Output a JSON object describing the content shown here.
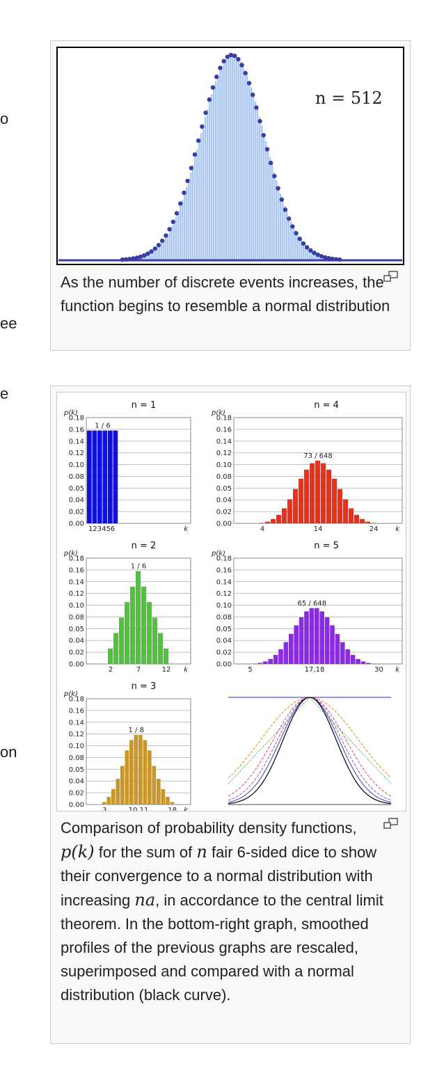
{
  "edge_fragments": [
    "o",
    "ee",
    "e",
    "on"
  ],
  "figure1": {
    "annotation": "n = 512",
    "caption": "As the number of discrete events increases, the function begins to resemble a normal distribution",
    "enlarge_icon": "magnify-clip-icon",
    "colors": {
      "bars": "#a9c8f4",
      "dots": "#3a3ea0",
      "frame": "#000000"
    }
  },
  "figure2": {
    "caption": {
      "part1": "Comparison of probability density functions, ",
      "math1": "p(k)",
      "part2": " for the sum of ",
      "math2": "n",
      "part3": " fair 6-sided dice to show their convergence to a normal distribution with increasing ",
      "math3": "na",
      "part4": ", in accordance to the central limit theorem. In the bottom-right graph, smoothed profiles of the previous graphs are rescaled, superimposed and compared with a normal distribution (black curve)."
    },
    "enlarge_icon": "magnify-clip-icon"
  },
  "chart_data": [
    {
      "type": "scatter",
      "annotation": "n = 512",
      "shape": "normal-like bell curve of dots over light-blue bars"
    },
    {
      "type": "bar",
      "title": "n = 1",
      "ylabel": "p(k)",
      "xlabel": "k",
      "y_ticks": [
        "0.18",
        "0.16",
        "0.14",
        "0.12",
        "0.10",
        "0.08",
        "0.05",
        "0.04",
        "0.02",
        "0.00"
      ],
      "x_tick_labels": [
        "123456"
      ],
      "peak_label": "1 / 6",
      "ylim": [
        0,
        0.19
      ],
      "k_start": 1,
      "color": "#1010e0",
      "values": [
        0.1667,
        0.1667,
        0.1667,
        0.1667,
        0.1667,
        0.1667
      ]
    },
    {
      "type": "bar",
      "title": "n = 4",
      "ylabel": "p(k)",
      "xlabel": "k",
      "y_ticks": [
        "0.18",
        "0.16",
        "0.14",
        "0.12",
        "0.10",
        "0.08",
        "0.05",
        "0.04",
        "0.02",
        "0.00"
      ],
      "x_tick_labels": [
        "4",
        "14",
        "24"
      ],
      "peak_label": "73 / 648",
      "ylim": [
        0,
        0.19
      ],
      "k_start": 4,
      "color": "#e8301c",
      "values": [
        0.0008,
        0.0031,
        0.0077,
        0.0154,
        0.027,
        0.0432,
        0.0617,
        0.0802,
        0.0965,
        0.108,
        0.1127,
        0.108,
        0.0965,
        0.0802,
        0.0617,
        0.0432,
        0.027,
        0.0154,
        0.0077,
        0.0031,
        0.0008
      ]
    },
    {
      "type": "bar",
      "title": "n = 2",
      "ylabel": "p(k)",
      "xlabel": "k",
      "y_ticks": [
        "0.18",
        "0.16",
        "0.14",
        "0.12",
        "0.10",
        "0.08",
        "0.05",
        "0.04",
        "0.02",
        "0.00"
      ],
      "x_tick_labels": [
        "2",
        "7",
        "12"
      ],
      "peak_label": "1 / 6",
      "ylim": [
        0,
        0.19
      ],
      "k_start": 2,
      "color": "#55c040",
      "values": [
        0.0278,
        0.0556,
        0.0833,
        0.1111,
        0.1389,
        0.1667,
        0.1389,
        0.1111,
        0.0833,
        0.0556,
        0.0278
      ]
    },
    {
      "type": "bar",
      "title": "n = 5",
      "ylabel": "p(k)",
      "xlabel": "k",
      "y_ticks": [
        "0.18",
        "0.16",
        "0.14",
        "0.12",
        "0.10",
        "0.08",
        "0.05",
        "0.04",
        "0.02",
        "0.00"
      ],
      "x_tick_labels": [
        "5",
        "17,18",
        "30"
      ],
      "peak_label": "65 / 648",
      "ylim": [
        0,
        0.19
      ],
      "k_start": 5,
      "color": "#8a2be2",
      "values": [
        0.0001,
        0.0006,
        0.0019,
        0.0045,
        0.009,
        0.0162,
        0.0264,
        0.0392,
        0.054,
        0.0694,
        0.0837,
        0.0945,
        0.1003,
        0.1003,
        0.0945,
        0.0837,
        0.0694,
        0.054,
        0.0392,
        0.0264,
        0.0162,
        0.009,
        0.0045,
        0.0019,
        0.0006,
        0.0001
      ]
    },
    {
      "type": "bar",
      "title": "n = 3",
      "ylabel": "p(k)",
      "xlabel": "k",
      "y_ticks": [
        "0.18",
        "0.16",
        "0.14",
        "0.12",
        "0.10",
        "0.08",
        "0.05",
        "0.04",
        "0.02",
        "0.00"
      ],
      "x_tick_labels": [
        "3",
        "10,11",
        "18"
      ],
      "peak_label": "1 / 8",
      "ylim": [
        0,
        0.19
      ],
      "k_start": 3,
      "color": "#c8962a",
      "values": [
        0.0046,
        0.0139,
        0.0278,
        0.0463,
        0.0694,
        0.0972,
        0.1157,
        0.125,
        0.125,
        0.1157,
        0.0972,
        0.0694,
        0.0463,
        0.0278,
        0.0139,
        0.0046
      ]
    },
    {
      "type": "line",
      "note": "smoothed profiles rescaled and superimposed with a normal distribution",
      "series": [
        {
          "color": "#00a000",
          "n": 1
        },
        {
          "color": "#e08000",
          "n": 2
        },
        {
          "color": "#e03060",
          "n": 3
        },
        {
          "color": "#9040c0",
          "n": 4
        },
        {
          "color": "#2030c0",
          "n": 5
        },
        {
          "color": "#000000",
          "n": 0
        }
      ]
    }
  ]
}
